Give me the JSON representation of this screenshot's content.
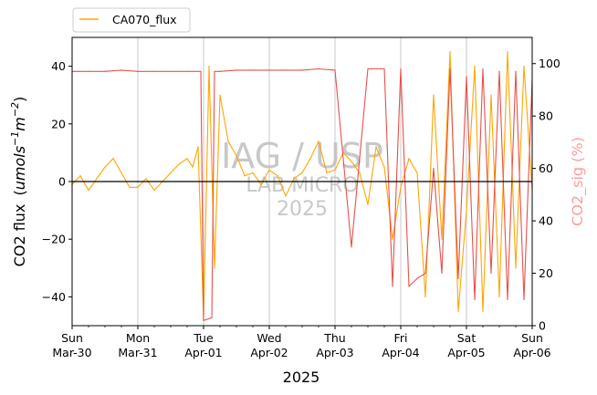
{
  "chart_data": {
    "type": "line",
    "xlabel": "2025",
    "ylabel": "CO2 flux",
    "ylabel_math": "(umols⁻¹m⁻²)",
    "ylabel_unit_parts": [
      "(",
      "umols",
      "−1",
      "m",
      "−2",
      ")"
    ],
    "y2label": "CO2_sig (%)",
    "ylim": [
      -50,
      50
    ],
    "y2lim": [
      0,
      110
    ],
    "yticks": [
      -40,
      -20,
      0,
      20,
      40
    ],
    "y2ticks": [
      0,
      20,
      40,
      60,
      80,
      100
    ],
    "xlim": [
      "2025-03-30",
      "2025-04-06"
    ],
    "xticks": [
      {
        "date": "2025-03-30",
        "day": "Sun",
        "date_label": "Mar-30"
      },
      {
        "date": "2025-03-31",
        "day": "Mon",
        "date_label": "Mar-31"
      },
      {
        "date": "2025-04-01",
        "day": "Tue",
        "date_label": "Apr-01"
      },
      {
        "date": "2025-04-02",
        "day": "Wed",
        "date_label": "Apr-02"
      },
      {
        "date": "2025-04-03",
        "day": "Thu",
        "date_label": "Apr-03"
      },
      {
        "date": "2025-04-04",
        "day": "Fri",
        "date_label": "Apr-04"
      },
      {
        "date": "2025-04-05",
        "day": "Sat",
        "date_label": "Apr-05"
      },
      {
        "date": "2025-04-06",
        "day": "Sun",
        "date_label": "Apr-06"
      }
    ],
    "grid": "x-major",
    "legend_position": "top-left",
    "zero_line": true,
    "watermark": [
      "IAG / USP",
      "LAB MICRO",
      "2025"
    ],
    "series": [
      {
        "name": "CA070_flux",
        "axis": "left",
        "color": "#ffa500",
        "x": [
          "2025-03-30T00:00",
          "2025-03-30T03:00",
          "2025-03-30T06:00",
          "2025-03-30T09:00",
          "2025-03-30T12:00",
          "2025-03-30T15:00",
          "2025-03-30T18:00",
          "2025-03-30T21:00",
          "2025-03-31T00:00",
          "2025-03-31T03:00",
          "2025-03-31T06:00",
          "2025-03-31T09:00",
          "2025-03-31T12:00",
          "2025-03-31T15:00",
          "2025-03-31T18:00",
          "2025-03-31T20:00",
          "2025-03-31T22:00",
          "2025-04-01T00:00",
          "2025-04-01T02:00",
          "2025-04-01T04:00",
          "2025-04-01T06:00",
          "2025-04-01T09:00",
          "2025-04-01T12:00",
          "2025-04-01T15:00",
          "2025-04-01T18:00",
          "2025-04-01T21:00",
          "2025-04-02T00:00",
          "2025-04-02T03:00",
          "2025-04-02T06:00",
          "2025-04-02T09:00",
          "2025-04-02T12:00",
          "2025-04-02T15:00",
          "2025-04-02T18:00",
          "2025-04-02T21:00",
          "2025-04-03T00:00",
          "2025-04-03T03:00",
          "2025-04-03T06:00",
          "2025-04-03T09:00",
          "2025-04-03T12:00",
          "2025-04-03T15:00",
          "2025-04-03T18:00",
          "2025-04-03T21:00",
          "2025-04-04T00:00",
          "2025-04-04T03:00",
          "2025-04-04T06:00",
          "2025-04-04T09:00",
          "2025-04-04T12:00",
          "2025-04-04T15:00",
          "2025-04-04T18:00",
          "2025-04-04T21:00",
          "2025-04-05T00:00",
          "2025-04-05T03:00",
          "2025-04-05T06:00",
          "2025-04-05T09:00",
          "2025-04-05T12:00",
          "2025-04-05T15:00",
          "2025-04-05T18:00",
          "2025-04-05T21:00",
          "2025-04-06T00:00"
        ],
        "y": [
          -1,
          2,
          -3,
          1,
          5,
          8,
          3,
          -2,
          -2,
          1,
          -3,
          0,
          3,
          6,
          8,
          5,
          12,
          -48,
          40,
          -30,
          30,
          14,
          9,
          2,
          3,
          -1,
          4,
          2,
          -5,
          1,
          3,
          8,
          14,
          3,
          4,
          10,
          7,
          3,
          -8,
          12,
          5,
          -20,
          -2,
          8,
          3,
          -40,
          30,
          -20,
          45,
          -45,
          -10,
          40,
          -45,
          30,
          -40,
          45,
          -30,
          40,
          -3
        ]
      },
      {
        "name": "CO2_sig",
        "axis": "right",
        "color": "#e8504a",
        "x": [
          "2025-03-30T00:00",
          "2025-03-30T06:00",
          "2025-03-30T12:00",
          "2025-03-30T18:00",
          "2025-03-31T00:00",
          "2025-03-31T06:00",
          "2025-03-31T12:00",
          "2025-03-31T18:00",
          "2025-03-31T23:00",
          "2025-04-01T00:00",
          "2025-04-01T03:00",
          "2025-04-01T04:00",
          "2025-04-01T06:00",
          "2025-04-01T12:00",
          "2025-04-01T18:00",
          "2025-04-02T00:00",
          "2025-04-02T06:00",
          "2025-04-02T12:00",
          "2025-04-02T18:00",
          "2025-04-03T00:00",
          "2025-04-03T06:00",
          "2025-04-03T12:00",
          "2025-04-03T18:00",
          "2025-04-03T21:00",
          "2025-04-04T00:00",
          "2025-04-04T03:00",
          "2025-04-04T06:00",
          "2025-04-04T09:00",
          "2025-04-04T12:00",
          "2025-04-04T15:00",
          "2025-04-04T18:00",
          "2025-04-04T21:00",
          "2025-04-05T00:00",
          "2025-04-05T03:00",
          "2025-04-05T06:00",
          "2025-04-05T09:00",
          "2025-04-05T12:00",
          "2025-04-05T15:00",
          "2025-04-05T18:00",
          "2025-04-05T21:00",
          "2025-04-06T00:00"
        ],
        "y": [
          97,
          97,
          97,
          97.5,
          97,
          97,
          97,
          97,
          97,
          2,
          3,
          97,
          97,
          97.5,
          97.5,
          97.5,
          97.5,
          97.5,
          98,
          97.5,
          30,
          98,
          98,
          15,
          98,
          15,
          18,
          20,
          60,
          20,
          98,
          18,
          95,
          10,
          98,
          20,
          97,
          10,
          97,
          10,
          94
        ]
      }
    ]
  }
}
